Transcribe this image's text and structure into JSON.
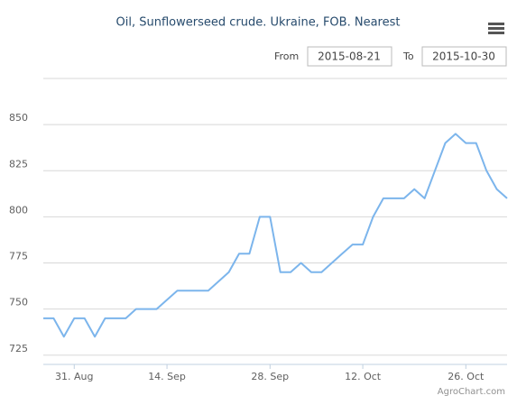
{
  "chart_data": {
    "type": "line",
    "title": "Oil, Sunflowerseed crude. Ukraine, FOB. Nearest",
    "range_selector": {
      "from_label": "From",
      "from_value": "2015-08-21",
      "to_label": "To",
      "to_value": "2015-10-30"
    },
    "credits": "AgroChart.com",
    "categories": [
      null,
      null,
      null,
      "31. Aug",
      null,
      null,
      null,
      null,
      null,
      null,
      null,
      null,
      "14. Sep",
      null,
      null,
      null,
      null,
      null,
      null,
      null,
      null,
      null,
      "28. Sep",
      null,
      null,
      null,
      null,
      null,
      null,
      null,
      null,
      "12. Oct",
      null,
      null,
      null,
      null,
      null,
      null,
      null,
      null,
      null,
      "26. Oct",
      null,
      null,
      null,
      null
    ],
    "values": [
      745,
      745,
      735,
      745,
      745,
      735,
      745,
      745,
      745,
      750,
      750,
      750,
      755,
      760,
      760,
      760,
      760,
      765,
      770,
      780,
      780,
      800,
      800,
      770,
      770,
      775,
      770,
      770,
      775,
      780,
      785,
      785,
      800,
      810,
      810,
      810,
      815,
      810,
      825,
      840,
      845,
      840,
      840,
      825,
      815,
      810
    ],
    "color": "#7cb5ec",
    "ylim": [
      720,
      875
    ],
    "yticks": [
      725,
      750,
      775,
      800,
      825,
      850
    ],
    "grid": true
  }
}
